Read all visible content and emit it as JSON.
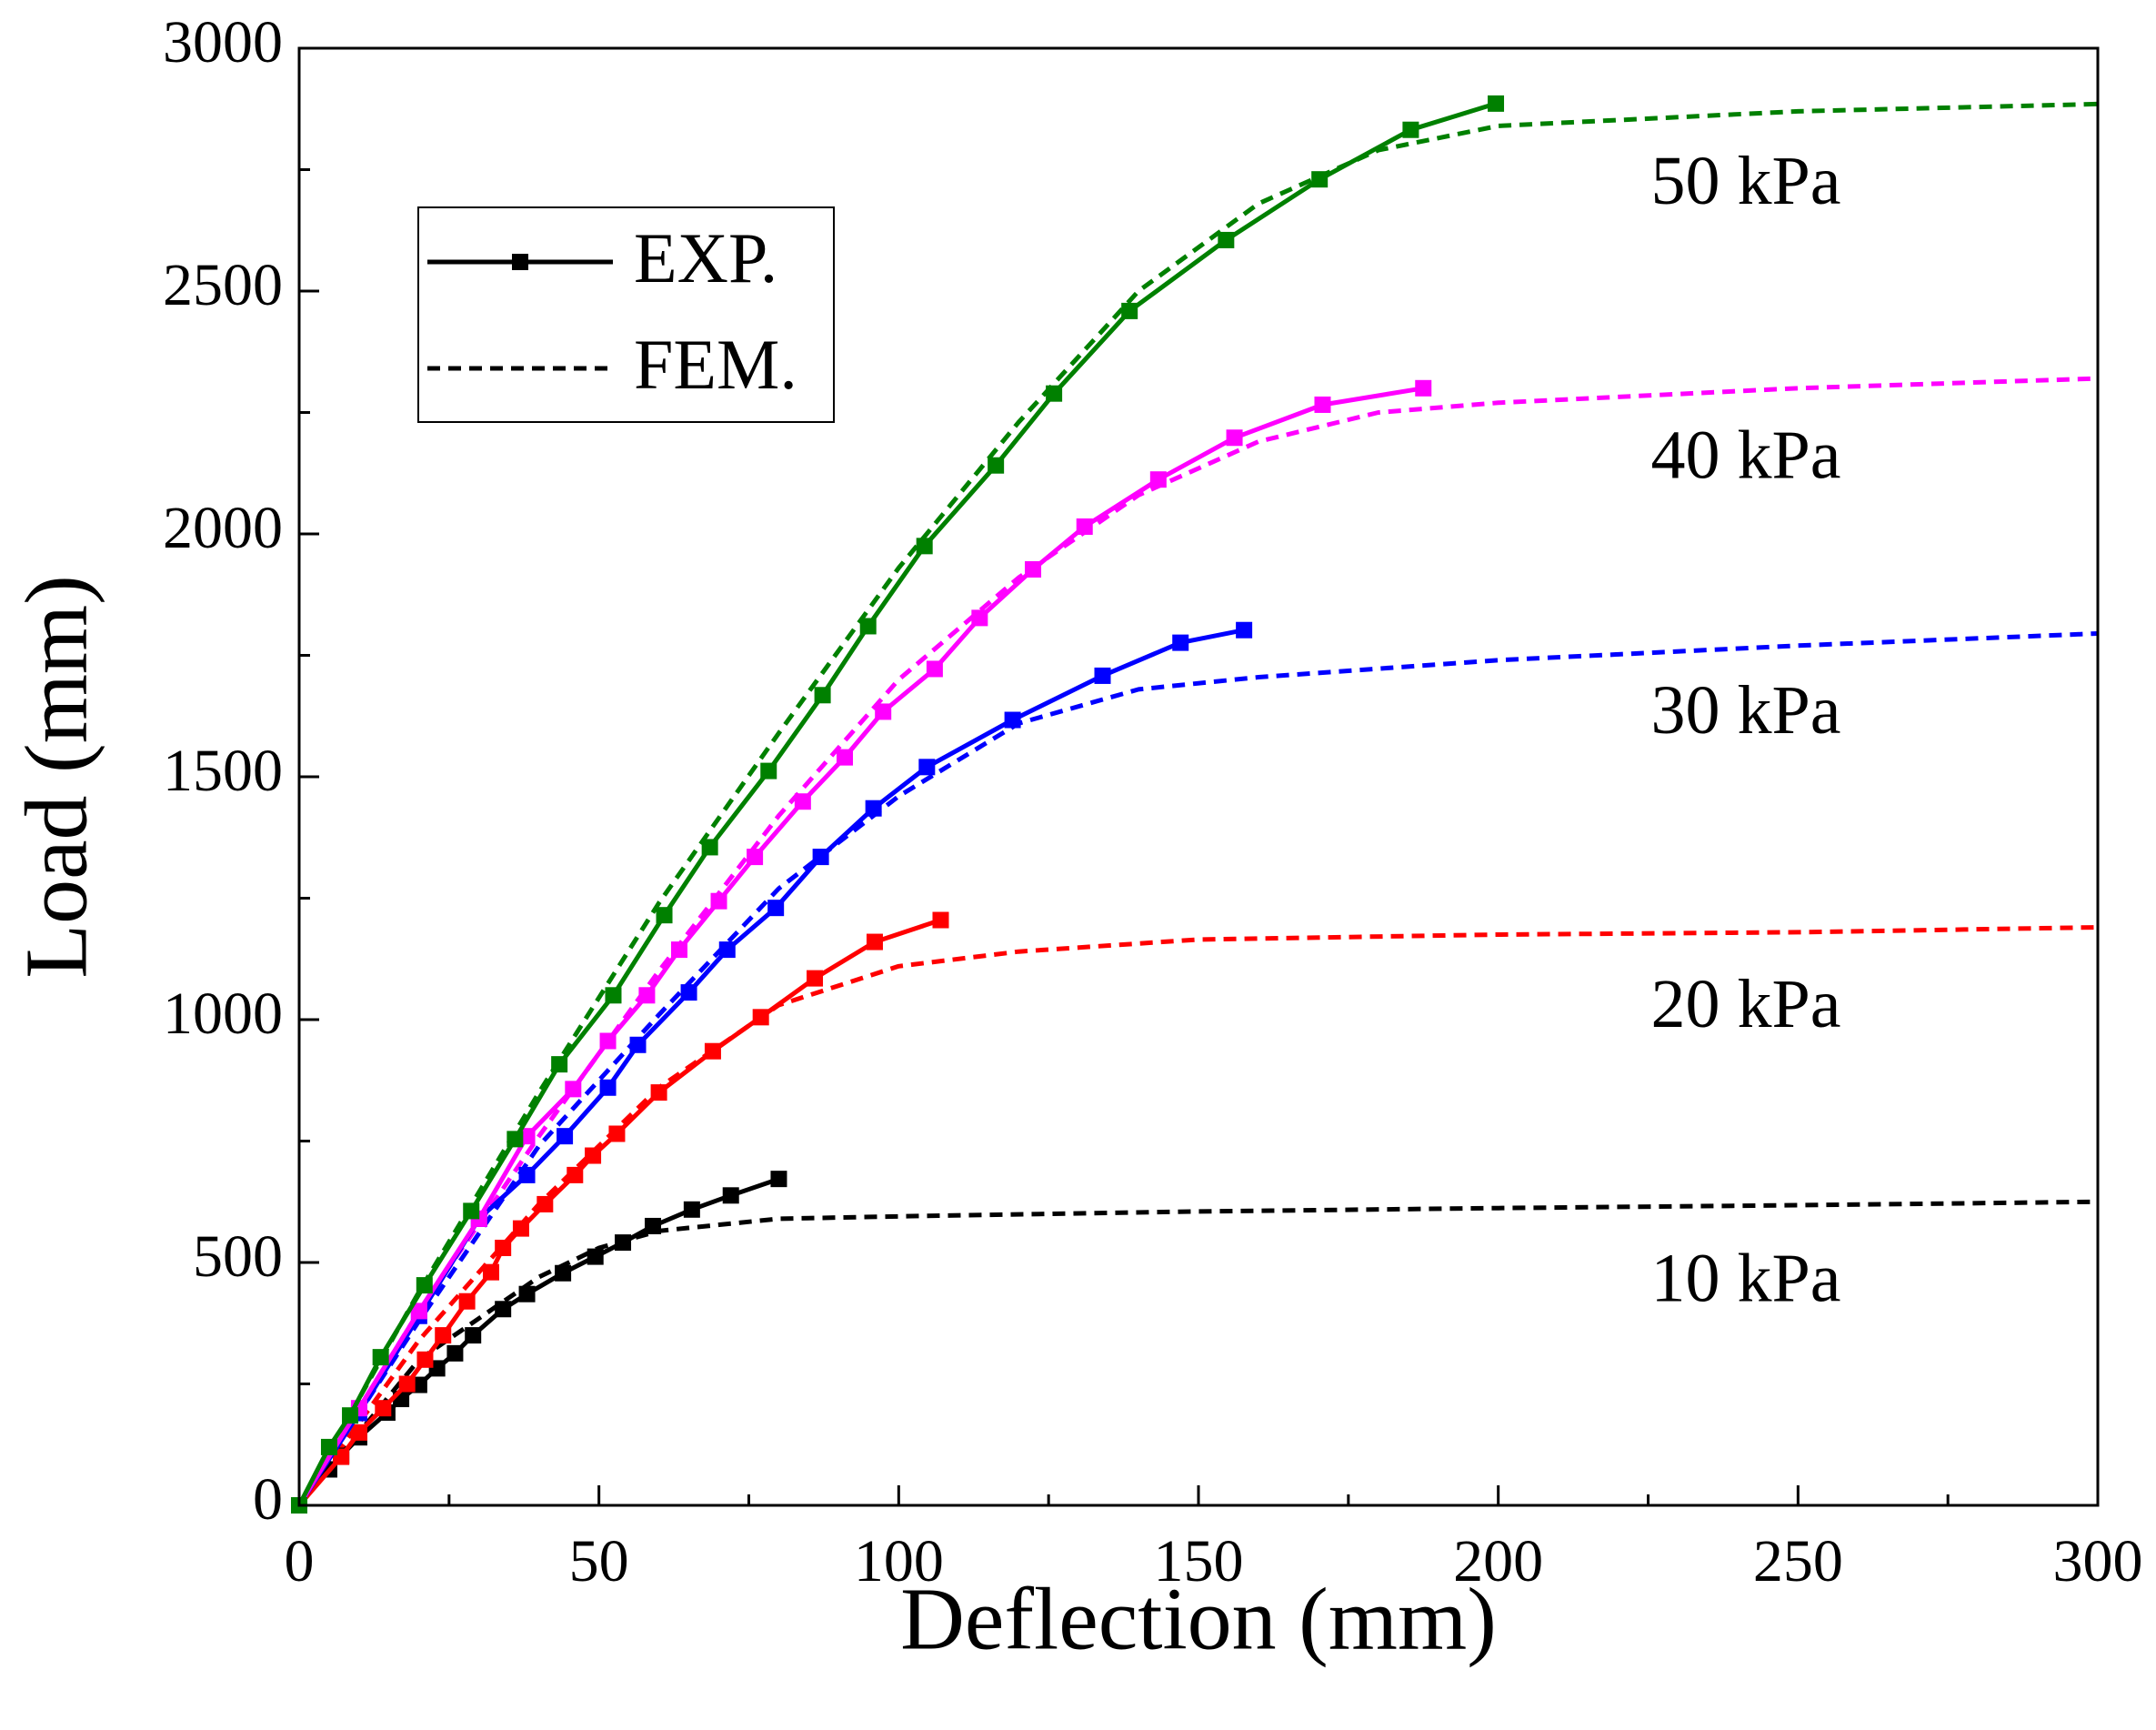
{
  "chart_data": {
    "type": "line",
    "xlabel": "Deflection (mm)",
    "ylabel": "Load (mm)",
    "xlim": [
      0,
      300
    ],
    "ylim": [
      0,
      3000
    ],
    "xticks": [
      0,
      50,
      100,
      150,
      200,
      250,
      300
    ],
    "yticks": [
      0,
      500,
      1000,
      1500,
      2000,
      2500,
      3000
    ],
    "legend": {
      "entries": [
        "EXP.",
        "FEM."
      ],
      "position": "upper left"
    },
    "series": [
      {
        "name": "10 kPa",
        "color": "#000000",
        "exp": {
          "x": [
            0,
            5,
            7,
            10,
            14.7,
            17,
            20,
            23,
            26,
            29,
            34,
            38,
            44,
            49.4,
            54,
            59,
            65.5,
            72,
            80
          ],
          "values": [
            0,
            74,
            102,
            140,
            191,
            219,
            248,
            282,
            313,
            350,
            404,
            435,
            478,
            512,
            541,
            575,
            609,
            638,
            672
          ]
        },
        "fem": {
          "x": [
            0,
            20,
            40,
            50,
            60,
            80,
            100,
            150,
            200,
            250,
            300
          ],
          "values": [
            0,
            300,
            470,
            530,
            565,
            590,
            595,
            605,
            612,
            618,
            625
          ]
        }
      },
      {
        "name": "20 kPa",
        "color": "#ff0000",
        "exp": {
          "x": [
            0,
            7,
            10,
            14,
            18,
            21,
            24,
            28,
            32,
            34,
            37,
            41,
            46,
            49,
            53,
            60,
            69,
            77,
            86,
            96,
            107
          ],
          "values": [
            0,
            100,
            150,
            200,
            250,
            300,
            350,
            420,
            480,
            530,
            570,
            620,
            680,
            720,
            765,
            850,
            935,
            1005,
            1085,
            1160,
            1205
          ]
        },
        "fem": {
          "x": [
            0,
            20,
            40,
            60,
            80,
            100,
            120,
            150,
            200,
            250,
            300
          ],
          "values": [
            0,
            340,
            620,
            860,
            1030,
            1110,
            1140,
            1165,
            1175,
            1180,
            1190
          ]
        }
      },
      {
        "name": "30 kPa",
        "color": "#0000ff",
        "exp": {
          "x": [
            0,
            10,
            20,
            30,
            38,
            44.3,
            51.5,
            56.5,
            65,
            71.4,
            79.5,
            87,
            95.8,
            104.7,
            119,
            134,
            147,
            157.6
          ],
          "values": [
            0,
            190,
            390,
            590,
            680,
            760,
            860,
            948,
            1056,
            1144,
            1230,
            1335,
            1435,
            1520,
            1617,
            1708,
            1776,
            1802
          ]
        },
        "fem": {
          "x": [
            0,
            20,
            40,
            60,
            80,
            100,
            120,
            140,
            160,
            200,
            250,
            300
          ],
          "values": [
            0,
            380,
            740,
            1010,
            1270,
            1460,
            1610,
            1680,
            1705,
            1740,
            1770,
            1795
          ]
        }
      },
      {
        "name": "40 kPa",
        "color": "#ff00ff",
        "exp": {
          "x": [
            0,
            10,
            20,
            30,
            38,
            45.7,
            51.5,
            58,
            63.4,
            70,
            76,
            84,
            91,
            97.4,
            106,
            113.5,
            122.4,
            131,
            143.3,
            156,
            170.7,
            187.5
          ],
          "values": [
            0,
            200,
            400,
            590,
            760,
            857,
            956,
            1050,
            1144,
            1244,
            1335,
            1449,
            1540,
            1634,
            1722,
            1827,
            1927,
            2015,
            2112,
            2198,
            2266,
            2300
          ]
        },
        "fem": {
          "x": [
            0,
            20,
            40,
            60,
            80,
            100,
            120,
            140,
            160,
            180,
            200,
            250,
            300
          ],
          "values": [
            0,
            400,
            760,
            1100,
            1420,
            1700,
            1910,
            2080,
            2190,
            2250,
            2270,
            2300,
            2320
          ]
        }
      },
      {
        "name": "50 kPa",
        "color": "#008000",
        "exp": {
          "x": [
            0,
            5,
            8.5,
            13.6,
            20.9,
            28.7,
            36,
            43.4,
            52.4,
            60.9,
            68.5,
            78.3,
            87.3,
            94.9,
            104.3,
            116.2,
            125.9,
            138.5,
            154.6,
            170.2,
            185.4,
            199.6
          ],
          "values": [
            0,
            120,
            185,
            305,
            453,
            606,
            754,
            908,
            1050,
            1215,
            1355,
            1512,
            1668,
            1810,
            1975,
            2141,
            2289,
            2459,
            2605,
            2730,
            2832,
            2886
          ]
        },
        "fem": {
          "x": [
            0,
            20,
            40,
            60,
            80,
            100,
            120,
            140,
            160,
            180,
            200,
            250,
            300
          ],
          "values": [
            0,
            440,
            850,
            1240,
            1590,
            1930,
            2230,
            2500,
            2680,
            2790,
            2840,
            2870,
            2885
          ]
        }
      }
    ]
  }
}
